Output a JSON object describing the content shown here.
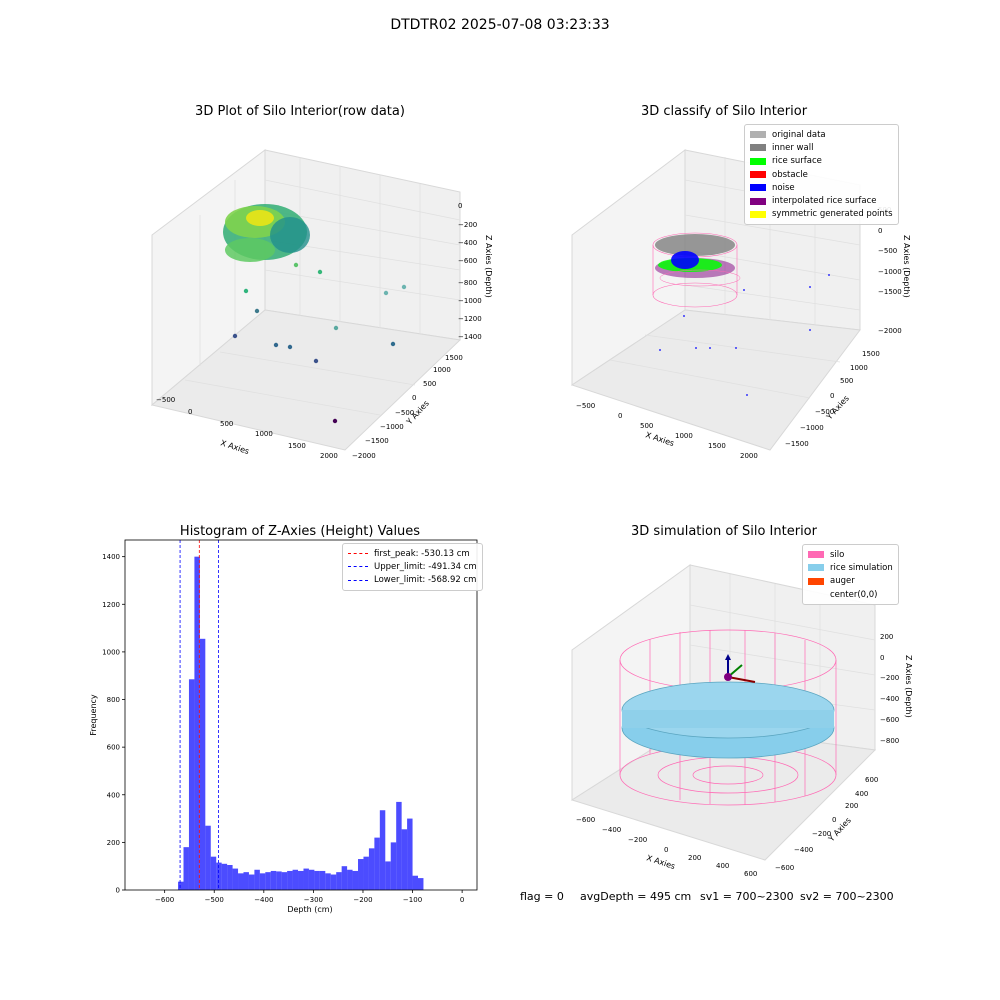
{
  "figure": {
    "suptitle": "DTDTR02 2025-07-08 03:23:33",
    "footer": {
      "flag": "flag = 0",
      "avg_depth": "avgDepth = 495 cm",
      "sv1": "sv1 = 700~2300",
      "sv2": "sv2 = 700~2300"
    }
  },
  "chart_data": [
    {
      "type": "scatter",
      "subtype": "3d",
      "title": "3D Plot of Silo Interior(row data)",
      "xlabel": "X Axies",
      "ylabel": "Y Axies",
      "zlabel": "Z Axies (Depth)",
      "x_ticks": [
        "−500",
        "0",
        "500",
        "1000",
        "1500",
        "2000"
      ],
      "y_ticks": [
        "−2000",
        "−1500",
        "−1000",
        "−500",
        "0",
        "500",
        "1000",
        "1500"
      ],
      "z_ticks": [
        "−1400",
        "−1200",
        "−1000",
        "−800",
        "−600",
        "−400",
        "−200",
        "0"
      ],
      "colormap": "viridis",
      "description_points": [
        {
          "x": -150,
          "y": 600,
          "z": -1300
        },
        {
          "x": 200,
          "y": -500,
          "z": -1200
        },
        {
          "x": 550,
          "y": -700,
          "z": -1150
        },
        {
          "x": 800,
          "y": -900,
          "z": -1200
        },
        {
          "x": 1100,
          "y": -200,
          "z": -1050
        },
        {
          "x": 1600,
          "y": 300,
          "z": -900
        },
        {
          "x": 1900,
          "y": 900,
          "z": -800
        },
        {
          "x": 1500,
          "y": -1600,
          "z": -1400
        },
        {
          "x": 900,
          "y": 1200,
          "z": -850
        },
        {
          "x": 2000,
          "y": -600,
          "z": -1100
        }
      ]
    },
    {
      "type": "scatter",
      "subtype": "3d",
      "title": "3D classify of Silo Interior",
      "xlabel": "X Axies",
      "ylabel": "Y Axies",
      "zlabel": "Z Axies (Depth)",
      "x_ticks": [
        "−500",
        "0",
        "500",
        "1000",
        "1500",
        "2000"
      ],
      "y_ticks": [
        "−1500",
        "−1000",
        "−500",
        "0",
        "500",
        "1000",
        "1500"
      ],
      "z_ticks": [
        "−2000",
        "−1500",
        "−1000",
        "−500",
        "0",
        "500"
      ],
      "legend": [
        {
          "label": "original data",
          "color": "#b0b0b0"
        },
        {
          "label": "inner wall",
          "color": "#808080"
        },
        {
          "label": "rice surface",
          "color": "#00ff00"
        },
        {
          "label": "obstacle",
          "color": "#ff0000"
        },
        {
          "label": "noise",
          "color": "#0000ff"
        },
        {
          "label": "interpolated rice surface",
          "color": "#800080"
        },
        {
          "label": "symmetric generated points",
          "color": "#ffff00"
        }
      ]
    },
    {
      "type": "bar",
      "subtype": "histogram",
      "title": "Histogram of Z-Axies (Height) Values",
      "xlabel": "Depth (cm)",
      "ylabel": "Frequency",
      "xlim": [
        -680,
        30
      ],
      "ylim": [
        0,
        1470
      ],
      "x_ticks": [
        -600,
        -500,
        -400,
        -300,
        -200,
        -100,
        0
      ],
      "y_ticks": [
        0,
        200,
        400,
        600,
        800,
        1000,
        1200,
        1400
      ],
      "bar_color": "#0000ff",
      "bin_width": 11,
      "bins_start": [
        -573,
        -562,
        -551,
        -540,
        -529,
        -518,
        -507,
        -496,
        -485,
        -474,
        -463,
        -452,
        -441,
        -430,
        -419,
        -408,
        -397,
        -386,
        -375,
        -364,
        -353,
        -342,
        -331,
        -320,
        -309,
        -298,
        -287,
        -276,
        -265,
        -254,
        -243,
        -232,
        -221,
        -210,
        -199,
        -188,
        -177,
        -166,
        -155,
        -144,
        -133,
        -122,
        -111,
        -100,
        -89,
        -78,
        -67,
        -56,
        -45,
        -34,
        -23,
        -12
      ],
      "values": [
        35,
        180,
        885,
        1400,
        1055,
        270,
        140,
        115,
        110,
        105,
        90,
        70,
        75,
        65,
        85,
        70,
        75,
        80,
        78,
        75,
        80,
        85,
        80,
        90,
        85,
        80,
        80,
        70,
        65,
        75,
        100,
        85,
        80,
        130,
        140,
        175,
        220,
        335,
        120,
        200,
        370,
        255,
        300,
        60,
        50,
        0,
        0,
        0,
        0,
        0,
        0,
        0
      ],
      "reference_lines": [
        {
          "label": "first_peak: -530.13 cm",
          "value": -530.13,
          "color": "#ff0000"
        },
        {
          "label": "Upper_limit: -491.34 cm",
          "value": -491.34,
          "color": "#0000ff"
        },
        {
          "label": "Lower_limit: -568.92 cm",
          "value": -568.92,
          "color": "#0000ff"
        }
      ]
    },
    {
      "type": "scatter",
      "subtype": "3d",
      "title": "3D simulation of Silo Interior",
      "xlabel": "X Axies",
      "ylabel": "Y Axies",
      "zlabel": "Z Axies (Depth)",
      "x_ticks": [
        "−600",
        "−400",
        "−200",
        "0",
        "200",
        "400",
        "600"
      ],
      "y_ticks": [
        "−600",
        "−400",
        "−200",
        "0",
        "200",
        "400",
        "600"
      ],
      "z_ticks": [
        "−800",
        "−600",
        "−400",
        "−200",
        "0",
        "200"
      ],
      "legend": [
        {
          "label": "silo",
          "color": "#ff69b4"
        },
        {
          "label": "rice simulation",
          "color": "#87ceeb"
        },
        {
          "label": "auger",
          "color": "#ff4500"
        },
        {
          "label": "center(0,0)",
          "color": ""
        }
      ]
    }
  ]
}
